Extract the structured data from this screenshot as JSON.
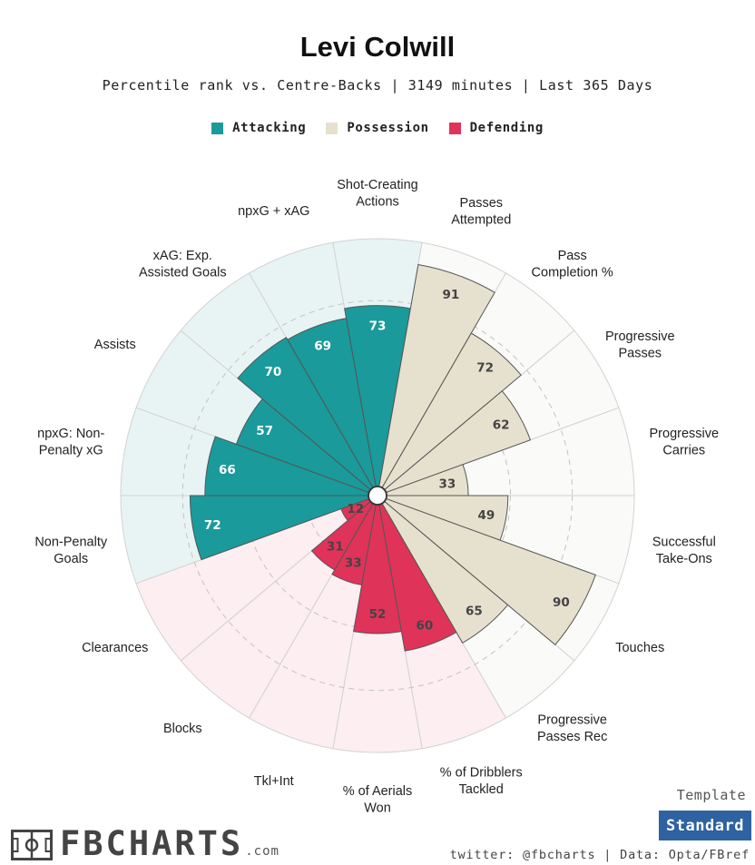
{
  "title": "Levi Colwill",
  "subtitle": "Percentile rank vs. Centre-Backs | 3149 minutes | Last 365 Days",
  "legend": [
    {
      "label": "Attacking",
      "color": "#1a9a9a"
    },
    {
      "label": "Possession",
      "color": "#e6e1cf"
    },
    {
      "label": "Defending",
      "color": "#e0335a"
    }
  ],
  "chart_data": {
    "type": "polar-bar",
    "range": [
      0,
      100
    ],
    "gridlines": [
      25,
      50,
      75
    ],
    "categories": [
      {
        "label": "Shot-Creating\nActions",
        "value": 73,
        "group": "Attacking"
      },
      {
        "label": "Passes\nAttempted",
        "value": 91,
        "group": "Possession"
      },
      {
        "label": "Pass\nCompletion %",
        "value": 72,
        "group": "Possession"
      },
      {
        "label": "Progressive\nPasses",
        "value": 62,
        "group": "Possession"
      },
      {
        "label": "Progressive\nCarries",
        "value": 33,
        "group": "Possession"
      },
      {
        "label": "Successful\nTake-Ons",
        "value": 49,
        "group": "Possession"
      },
      {
        "label": "Touches",
        "value": 90,
        "group": "Possession"
      },
      {
        "label": "Progressive\nPasses Rec",
        "value": 65,
        "group": "Possession"
      },
      {
        "label": "% of Dribblers\nTackled",
        "value": 60,
        "group": "Defending"
      },
      {
        "label": "% of Aerials\nWon",
        "value": 52,
        "group": "Defending"
      },
      {
        "label": "Tkl+Int",
        "value": 33,
        "group": "Defending"
      },
      {
        "label": "Blocks",
        "value": 31,
        "group": "Defending"
      },
      {
        "label": "Clearances",
        "value": 12,
        "group": "Defending"
      },
      {
        "label": "Non-Penalty\nGoals",
        "value": 72,
        "group": "Attacking"
      },
      {
        "label": "npxG: Non-\nPenalty xG",
        "value": 66,
        "group": "Attacking"
      },
      {
        "label": "Assists",
        "value": 57,
        "group": "Attacking"
      },
      {
        "label": "xAG: Exp.\nAssisted Goals",
        "value": 70,
        "group": "Attacking"
      },
      {
        "label": "npxG + xAG",
        "value": 69,
        "group": "Attacking"
      }
    ],
    "group_colors": {
      "Attacking": {
        "fill": "#1a9a9a",
        "bg": "#e8f4f4",
        "text": "#ffffff"
      },
      "Possession": {
        "fill": "#e6e1cf",
        "bg": "#fafaf8",
        "text": "#444444"
      },
      "Defending": {
        "fill": "#e0335a",
        "bg": "#fceef1",
        "text": "#444444"
      }
    }
  },
  "footer": {
    "logo_text": "FBCHARTS",
    "logo_suffix": ".com",
    "template_label": "Template",
    "template_value": "Standard",
    "credits": "twitter: @fbcharts | Data: Opta/FBref"
  }
}
